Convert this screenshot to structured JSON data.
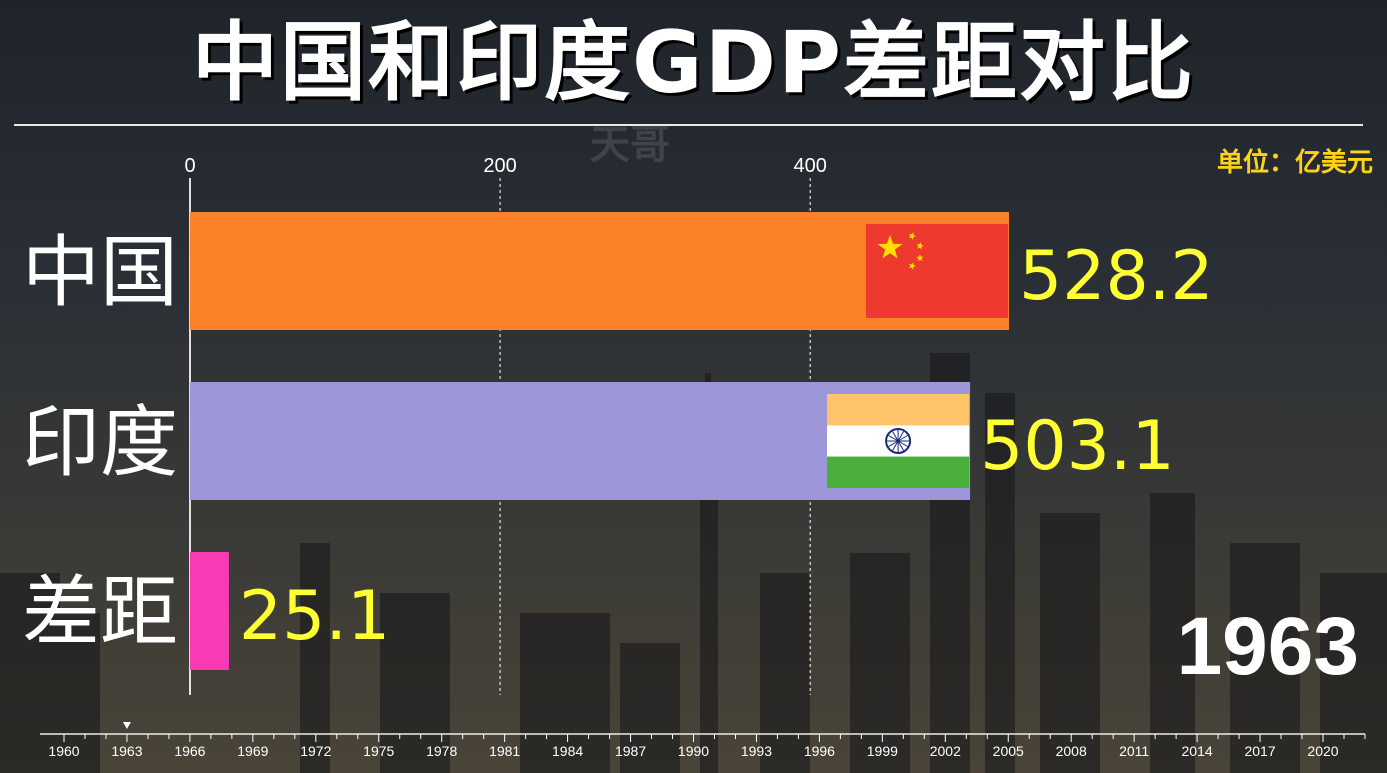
{
  "title": "中国和印度GDP差距对比",
  "watermark": "天哥",
  "unit_label": "单位：亿美元",
  "current_year": "1963",
  "colors": {
    "china": "#fb8128",
    "india": "#9d96d8",
    "gap": "#f83bb4",
    "value_text": "#ffff33",
    "axis_text": "#ffffff"
  },
  "chart_data": {
    "type": "bar",
    "orientation": "horizontal",
    "categories": [
      "中国",
      "印度",
      "差距"
    ],
    "values": [
      528.2,
      503.1,
      25.1
    ],
    "value_labels": [
      "528.2",
      "503.1",
      "25.1"
    ],
    "x_ticks": [
      0,
      200,
      400
    ],
    "xlim": [
      0,
      528.2
    ],
    "flags": [
      "china-flag-icon",
      "india-flag-icon",
      ""
    ],
    "grid": true
  },
  "timeline": {
    "years": [
      "1960",
      "1963",
      "1966",
      "1969",
      "1972",
      "1975",
      "1978",
      "1981",
      "1984",
      "1987",
      "1990",
      "1993",
      "1996",
      "1999",
      "2002",
      "2005",
      "2008",
      "2011",
      "2014",
      "2017",
      "2020"
    ],
    "current": "1963"
  }
}
